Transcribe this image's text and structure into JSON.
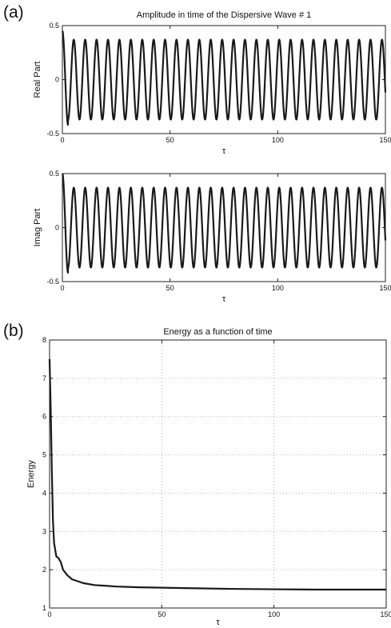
{
  "panels": {
    "a_label": "(a)",
    "b_label": "(b)"
  },
  "colors": {
    "line": "#1a1a1a",
    "axes": "#222222",
    "grid": "#b0b0b0"
  },
  "chart_data": [
    {
      "type": "line",
      "title": "Amplitude in time of the Dispersive Wave # 1",
      "xlabel": "τ",
      "ylabel": "Real Part",
      "xlim": [
        0,
        150
      ],
      "ylim": [
        -0.5,
        0.5
      ],
      "xticks": [
        "0",
        "50",
        "100",
        "150"
      ],
      "yticks": [
        "0.5",
        "0",
        "-0.5"
      ],
      "grid": false,
      "series": [
        {
          "description_kind": "oscillation",
          "amplitude": 0.37,
          "period": 5.3,
          "initial_value": 0.45,
          "first_trough": -0.42
        }
      ]
    },
    {
      "type": "line",
      "title": "",
      "xlabel": "τ",
      "ylabel": "Imag Part",
      "xlim": [
        0,
        150
      ],
      "ylim": [
        -0.5,
        0.5
      ],
      "xticks": [
        "0",
        "50",
        "100",
        "150"
      ],
      "yticks": [
        "0.5",
        "0",
        "-0.5"
      ],
      "grid": false,
      "series": [
        {
          "description_kind": "oscillation",
          "amplitude": 0.37,
          "period": 5.3,
          "initial_value": 0.5,
          "first_trough": -0.42
        }
      ]
    },
    {
      "type": "line",
      "title": "Energy as a function of time",
      "xlabel": "τ",
      "ylabel": "Energy",
      "xlim": [
        0,
        150
      ],
      "ylim": [
        1,
        8
      ],
      "xticks": [
        "0",
        "50",
        "100",
        "150"
      ],
      "yticks": [
        "8",
        "7",
        "6",
        "5",
        "4",
        "3",
        "2",
        "1"
      ],
      "grid": true,
      "series": [
        {
          "x": [
            0,
            0.5,
            1,
            1.5,
            2,
            3,
            4,
            5,
            6,
            8,
            10,
            15,
            20,
            30,
            40,
            60,
            80,
            100,
            120,
            150
          ],
          "y": [
            7.5,
            6.2,
            4.6,
            3.3,
            2.7,
            2.35,
            2.3,
            2.2,
            2.0,
            1.85,
            1.75,
            1.65,
            1.6,
            1.56,
            1.54,
            1.52,
            1.5,
            1.49,
            1.48,
            1.48
          ]
        }
      ]
    }
  ]
}
